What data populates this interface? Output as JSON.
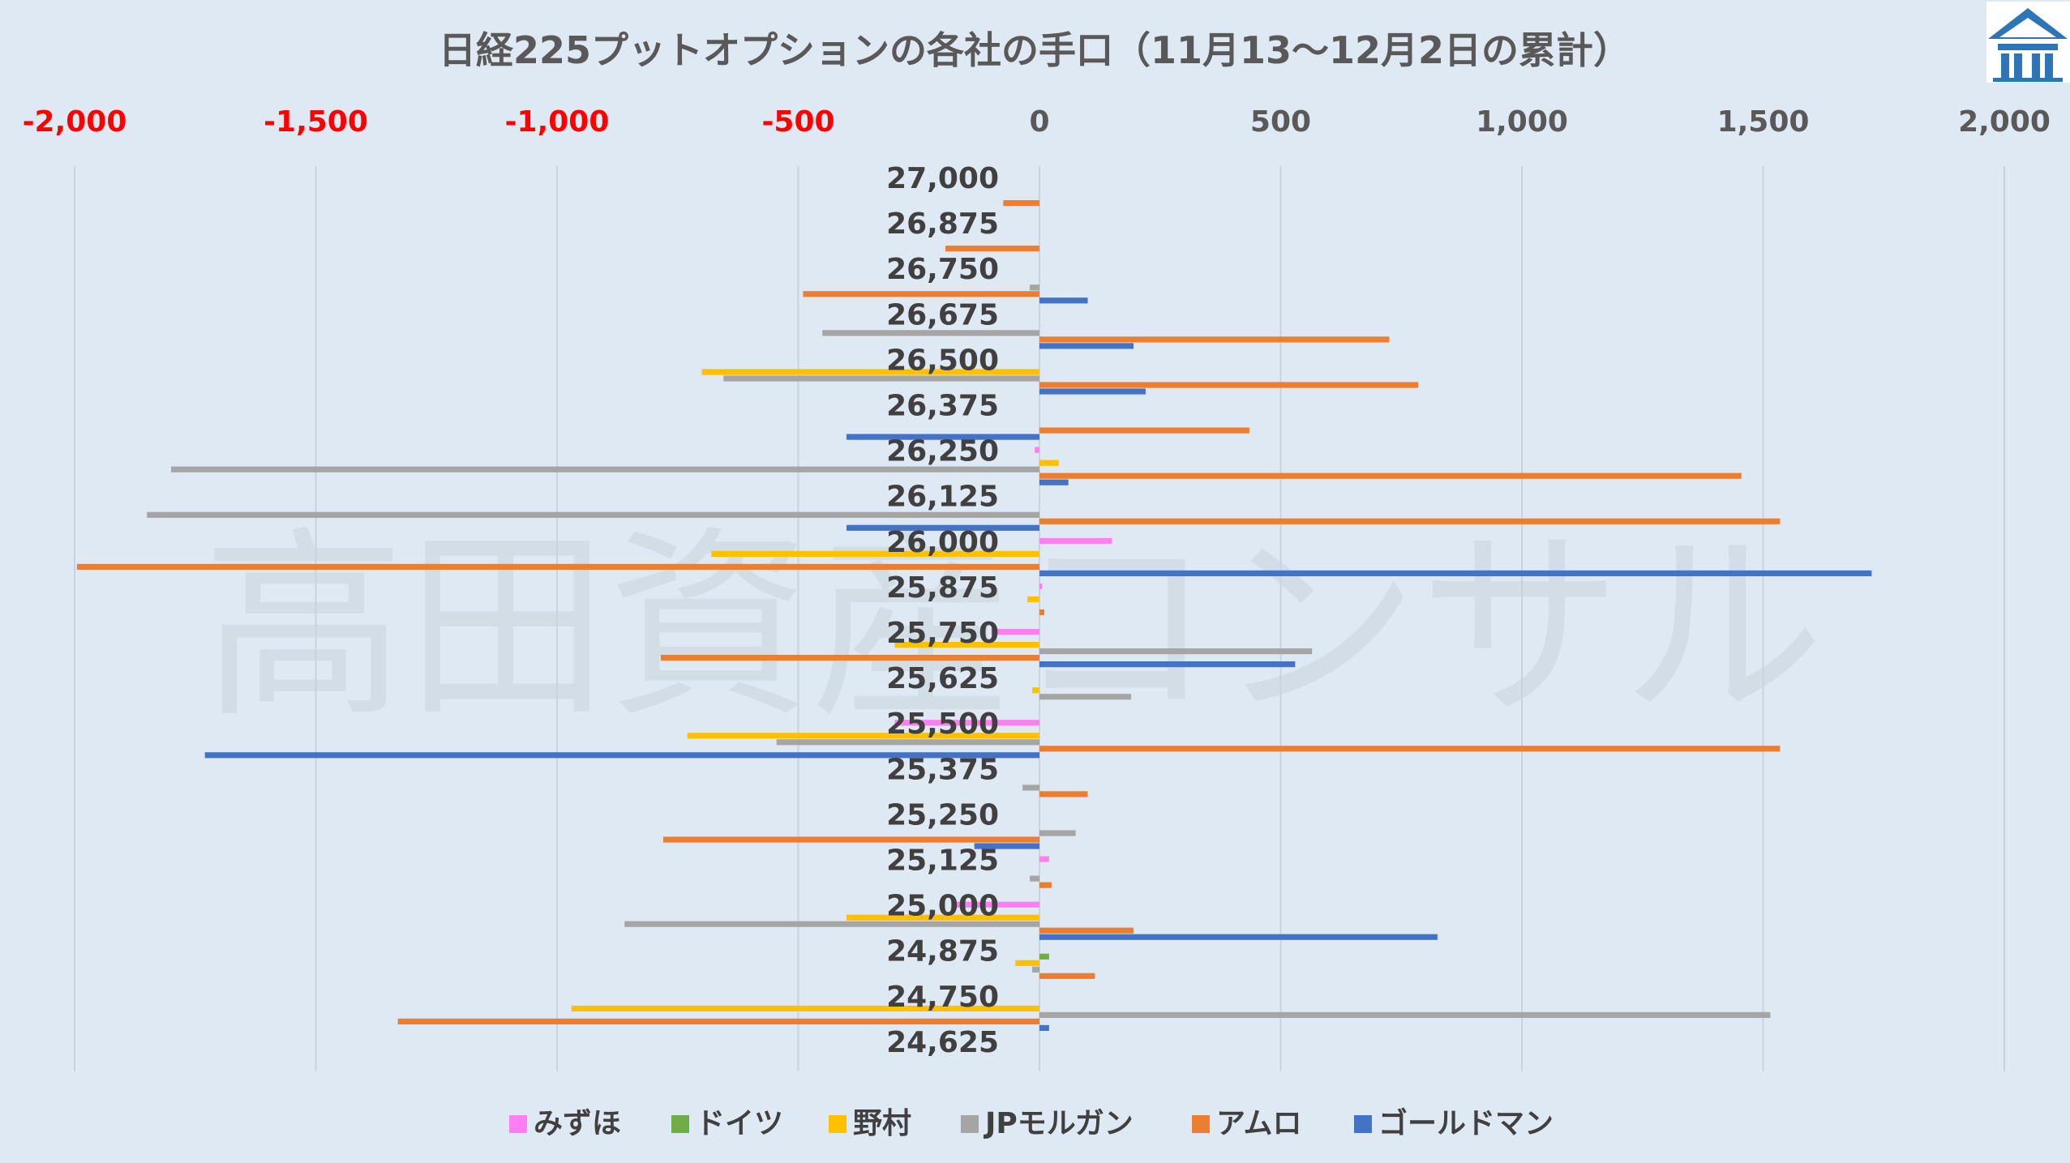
{
  "colors": {
    "background": "#dfe9f4",
    "negative_tick": "#ff0000",
    "positive_tick": "#595959",
    "grid": "#c9d3dd",
    "logo_bg": "#ffffff",
    "logo_fg": "#2e75b6"
  },
  "watermark": "高田資産コンサル",
  "logo": {
    "icon": "house-logo-icon"
  },
  "chart_data": {
    "type": "bar",
    "orientation": "horizontal",
    "title": "日経225プットオプションの各社の手口（11月13～12月2日の累計）",
    "xlim": [
      -2000,
      2000
    ],
    "x_ticks": [
      -2000,
      -1500,
      -1000,
      -500,
      0,
      500,
      1000,
      1500,
      2000
    ],
    "x_tick_labels": [
      "-2,000",
      "-1,500",
      "-1,000",
      "-500",
      "0",
      "500",
      "1,000",
      "1,500",
      "2,000"
    ],
    "x_axis_position": "top",
    "grid": true,
    "legend_position": "bottom",
    "categories": [
      "27,000",
      "26,875",
      "26,750",
      "26,675",
      "26,500",
      "26,375",
      "26,250",
      "26,125",
      "26,000",
      "25,875",
      "25,750",
      "25,625",
      "25,500",
      "25,375",
      "25,250",
      "25,125",
      "25,000",
      "24,875",
      "24,750",
      "24,625"
    ],
    "series": [
      {
        "name": "みずほ",
        "color": "#ff7ff0",
        "values": [
          0,
          0,
          0,
          0,
          0,
          0,
          -10,
          0,
          150,
          5,
          -100,
          0,
          -300,
          0,
          0,
          20,
          -180,
          0,
          0,
          0
        ]
      },
      {
        "name": "ドイツ",
        "color": "#70ad47",
        "values": [
          0,
          0,
          0,
          0,
          0,
          0,
          0,
          0,
          0,
          0,
          0,
          0,
          0,
          0,
          0,
          0,
          0,
          20,
          0,
          0
        ]
      },
      {
        "name": "野村",
        "color": "#ffc000",
        "values": [
          0,
          0,
          0,
          0,
          -700,
          0,
          40,
          0,
          -680,
          -25,
          -300,
          -15,
          -730,
          0,
          0,
          0,
          -400,
          -50,
          -970,
          0
        ]
      },
      {
        "name": "JPモルガン",
        "color": "#a5a5a5",
        "values": [
          0,
          0,
          -20,
          -450,
          -655,
          0,
          -1800,
          -1850,
          0,
          0,
          565,
          190,
          -545,
          -35,
          75,
          -20,
          -860,
          -15,
          1515,
          0
        ]
      },
      {
        "name": "アムロ",
        "color": "#ed7d31",
        "values": [
          -75,
          -195,
          -490,
          725,
          785,
          435,
          1455,
          1535,
          -1995,
          10,
          -785,
          0,
          1535,
          100,
          -780,
          25,
          195,
          115,
          -1330,
          0
        ]
      },
      {
        "name": "ゴールドマン",
        "color": "#4472c4",
        "values": [
          0,
          0,
          100,
          195,
          220,
          -400,
          60,
          -400,
          1725,
          0,
          530,
          0,
          -1730,
          0,
          -135,
          0,
          825,
          0,
          20,
          0
        ]
      }
    ]
  }
}
